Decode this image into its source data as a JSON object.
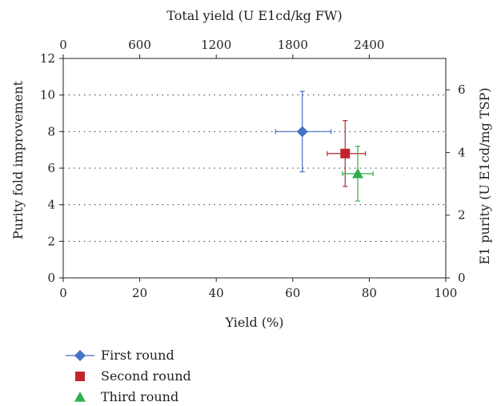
{
  "chart_data": {
    "type": "scatter",
    "xlabel": "Yield (%)",
    "ylabel": "Purity fold improvement",
    "x2label": "Total yield (U E1cd/kg FW)",
    "y2label": "E1 purity (U E1cd/mg TSP)",
    "xlim": [
      0,
      100
    ],
    "ylim": [
      0,
      12
    ],
    "x2lim": [
      0,
      3000
    ],
    "y2lim": [
      0,
      7
    ],
    "x_ticks": [
      "0",
      "20",
      "40",
      "60",
      "80",
      "100"
    ],
    "y_ticks": [
      "0",
      "2",
      "4",
      "6",
      "8",
      "10",
      "12"
    ],
    "x2_ticks": [
      "0",
      "600",
      "1200",
      "1800",
      "2400"
    ],
    "y2_ticks": [
      "0",
      "2",
      "4",
      "6"
    ],
    "grid": "horizontal dotted",
    "legend_position": "bottom-left",
    "series": [
      {
        "name": "First round",
        "marker": "diamond",
        "color": "#4472c4",
        "x": 62.5,
        "y": 8.0,
        "x_err_low": 55.5,
        "x_err_high": 70.0,
        "y_err_low": 5.8,
        "y_err_high": 10.2
      },
      {
        "name": "Second round",
        "marker": "square",
        "color": "#c0272d",
        "x": 73.7,
        "y": 6.8,
        "x_err_low": 69.0,
        "x_err_high": 79.0,
        "y_err_low": 5.0,
        "y_err_high": 8.6
      },
      {
        "name": "Third round",
        "marker": "triangle",
        "color": "#2eb04f",
        "x": 77.0,
        "y": 5.7,
        "x_err_low": 73.0,
        "x_err_high": 81.0,
        "y_err_low": 4.2,
        "y_err_high": 7.2
      }
    ]
  }
}
